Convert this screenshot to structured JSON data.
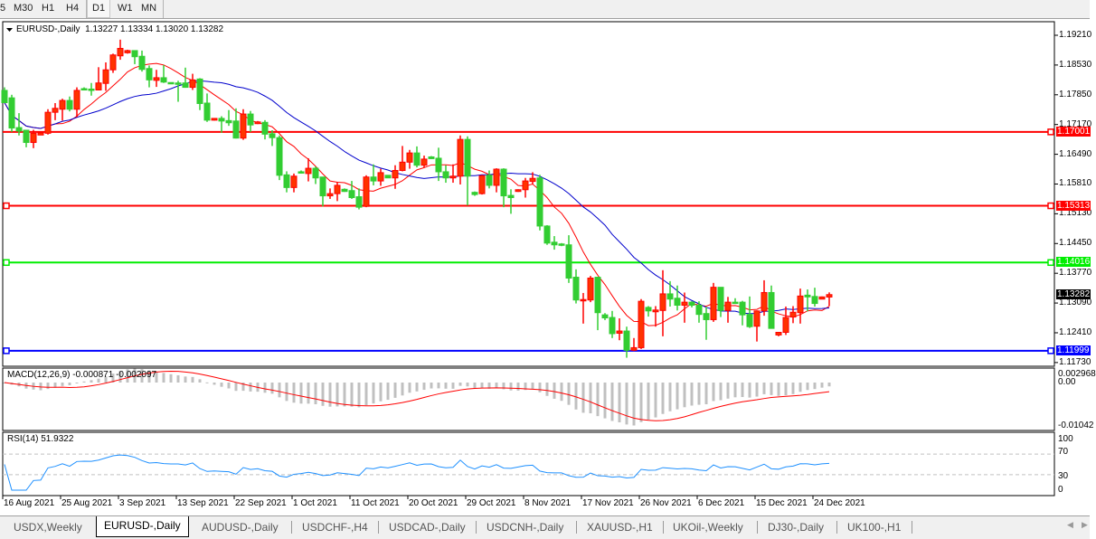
{
  "toolbar": {
    "timeframes": [
      "5",
      "M30",
      "H1",
      "H4",
      "D1",
      "W1",
      "MN"
    ],
    "active": "D1"
  },
  "chart": {
    "symbol_label": "EURUSD-,Daily",
    "ohlc_label": "1.13227 1.13334 1.13020 1.13282",
    "current_price": "1.13282",
    "colors": {
      "bull": "#ff3300",
      "bull_outline": "#ff0000",
      "bear": "#32cd32",
      "ma_fast": "#ff0000",
      "ma_slow": "#0000cc",
      "macd_hist": "#c0c0c0",
      "macd_signal": "#ff0000",
      "rsi": "#1e90ff"
    },
    "price_axis": [
      "1.19210",
      "1.18530",
      "1.17850",
      "1.17170",
      "1.16490",
      "1.15810",
      "1.15130",
      "1.14450",
      "1.13770",
      "1.13090",
      "1.12410",
      "1.11730"
    ],
    "levels": [
      {
        "price": "1.17001",
        "color": "#ff0000",
        "left_marker": false
      },
      {
        "price": "1.15313",
        "color": "#ff0000",
        "left_marker": true
      },
      {
        "price": "1.14016",
        "color": "#00ee00",
        "left_marker": true
      },
      {
        "price": "1.11999",
        "color": "#0000ff",
        "left_marker": true
      }
    ],
    "dates": [
      "16 Aug 2021",
      "25 Aug 2021",
      "3 Sep 2021",
      "13 Sep 2021",
      "22 Sep 2021",
      "1 Oct 2021",
      "11 Oct 2021",
      "20 Oct 2021",
      "29 Oct 2021",
      "8 Nov 2021",
      "17 Nov 2021",
      "26 Nov 2021",
      "6 Dec 2021",
      "15 Dec 2021",
      "24 Dec 2021"
    ],
    "candles_ohlc": [
      [
        1.1795,
        1.1802,
        1.1767,
        1.1767
      ],
      [
        1.1778,
        1.1785,
        1.17,
        1.1709
      ],
      [
        1.171,
        1.1743,
        1.1692,
        1.1702
      ],
      [
        1.1704,
        1.1704,
        1.1665,
        1.1676
      ],
      [
        1.1676,
        1.1705,
        1.1663,
        1.1697
      ],
      [
        1.1693,
        1.1698,
        1.1693,
        1.1698
      ],
      [
        1.1697,
        1.1752,
        1.1694,
        1.1745
      ],
      [
        1.1745,
        1.1766,
        1.1727,
        1.1754
      ],
      [
        1.1752,
        1.1776,
        1.1726,
        1.1772
      ],
      [
        1.1772,
        1.1781,
        1.1747,
        1.1752
      ],
      [
        1.1752,
        1.1802,
        1.1734,
        1.1795
      ],
      [
        1.1799,
        1.1802,
        1.1795,
        1.1798
      ],
      [
        1.1798,
        1.1812,
        1.1783,
        1.1797
      ],
      [
        1.1796,
        1.1848,
        1.1795,
        1.1812
      ],
      [
        1.1811,
        1.1859,
        1.1794,
        1.1842
      ],
      [
        1.1842,
        1.1879,
        1.1835,
        1.1876
      ],
      [
        1.1874,
        1.1911,
        1.1865,
        1.1891
      ],
      [
        1.1881,
        1.1888,
        1.1879,
        1.1886
      ],
      [
        1.1886,
        1.1886,
        1.1855,
        1.1872
      ],
      [
        1.1873,
        1.1886,
        1.1838,
        1.1843
      ],
      [
        1.1845,
        1.1852,
        1.1802,
        1.1819
      ],
      [
        1.1818,
        1.1842,
        1.1803,
        1.1824
      ],
      [
        1.1824,
        1.1853,
        1.1812,
        1.1814
      ],
      [
        1.1813,
        1.1813,
        1.1811,
        1.1811
      ],
      [
        1.1812,
        1.1817,
        1.1769,
        1.1811
      ],
      [
        1.1812,
        1.1847,
        1.1801,
        1.1802
      ],
      [
        1.1802,
        1.1833,
        1.1796,
        1.1819
      ],
      [
        1.1821,
        1.1823,
        1.175,
        1.1765
      ],
      [
        1.1766,
        1.1788,
        1.1723,
        1.1727
      ],
      [
        1.1727,
        1.1731,
        1.1726,
        1.1731
      ],
      [
        1.1731,
        1.1736,
        1.1698,
        1.1725
      ],
      [
        1.1726,
        1.175,
        1.1714,
        1.1721
      ],
      [
        1.1725,
        1.1754,
        1.1685,
        1.1686
      ],
      [
        1.1686,
        1.1752,
        1.1682,
        1.1741
      ],
      [
        1.1741,
        1.1748,
        1.17,
        1.1716
      ],
      [
        1.1719,
        1.1725,
        1.1718,
        1.1723
      ],
      [
        1.1722,
        1.1727,
        1.1683,
        1.1695
      ],
      [
        1.1696,
        1.1704,
        1.1668,
        1.1687
      ],
      [
        1.1687,
        1.1692,
        1.159,
        1.1601
      ],
      [
        1.1602,
        1.161,
        1.1562,
        1.1573
      ],
      [
        1.1573,
        1.1605,
        1.1562,
        1.1599
      ],
      [
        1.1609,
        1.1612,
        1.1605,
        1.1606
      ],
      [
        1.1605,
        1.164,
        1.1587,
        1.1617
      ],
      [
        1.1617,
        1.1621,
        1.1581,
        1.1595
      ],
      [
        1.1597,
        1.1597,
        1.153,
        1.1554
      ],
      [
        1.1554,
        1.1571,
        1.1547,
        1.1559
      ],
      [
        1.1559,
        1.1586,
        1.1542,
        1.1578
      ],
      [
        1.1569,
        1.1571,
        1.1563,
        1.1564
      ],
      [
        1.1566,
        1.1588,
        1.1547,
        1.155
      ],
      [
        1.1552,
        1.1571,
        1.1523,
        1.1528
      ],
      [
        1.153,
        1.1601,
        1.1528,
        1.1597
      ],
      [
        1.1597,
        1.1626,
        1.1578,
        1.1588
      ],
      [
        1.1588,
        1.1616,
        1.1577,
        1.1607
      ],
      [
        1.1601,
        1.1601,
        1.1595,
        1.1595
      ],
      [
        1.1595,
        1.1624,
        1.157,
        1.1612
      ],
      [
        1.1612,
        1.1668,
        1.161,
        1.1631
      ],
      [
        1.1631,
        1.1659,
        1.1616,
        1.1652
      ],
      [
        1.1652,
        1.1667,
        1.1619,
        1.1624
      ],
      [
        1.1624,
        1.1646,
        1.1619,
        1.1638
      ],
      [
        1.1643,
        1.1645,
        1.1638,
        1.1639
      ],
      [
        1.164,
        1.1664,
        1.1588,
        1.1609
      ],
      [
        1.1609,
        1.1624,
        1.1584,
        1.1595
      ],
      [
        1.1595,
        1.1626,
        1.1584,
        1.1599
      ],
      [
        1.1599,
        1.1692,
        1.158,
        1.1683
      ],
      [
        1.1683,
        1.169,
        1.1532,
        1.1599
      ],
      [
        1.1562,
        1.1564,
        1.1554,
        1.1557
      ],
      [
        1.1559,
        1.1602,
        1.1557,
        1.16
      ],
      [
        1.1601,
        1.1612,
        1.1571,
        1.1578
      ],
      [
        1.1578,
        1.1617,
        1.1562,
        1.1615
      ],
      [
        1.1615,
        1.1617,
        1.1528,
        1.1554
      ],
      [
        1.1555,
        1.1569,
        1.1513,
        1.155
      ],
      [
        1.1564,
        1.1569,
        1.1563,
        1.1568
      ],
      [
        1.1568,
        1.1595,
        1.155,
        1.1588
      ],
      [
        1.1587,
        1.1608,
        1.158,
        1.1594
      ],
      [
        1.1595,
        1.1602,
        1.1475,
        1.1485
      ],
      [
        1.1485,
        1.1487,
        1.1442,
        1.1446
      ],
      [
        1.1448,
        1.1462,
        1.1431,
        1.1442
      ],
      [
        1.1444,
        1.1446,
        1.1439,
        1.1441
      ],
      [
        1.1442,
        1.1464,
        1.1355,
        1.1366
      ],
      [
        1.1368,
        1.1386,
        1.1308,
        1.1316
      ],
      [
        1.1317,
        1.1332,
        1.1262,
        1.1317
      ],
      [
        1.1316,
        1.1371,
        1.1311,
        1.1366
      ],
      [
        1.1368,
        1.1369,
        1.1247,
        1.1287
      ],
      [
        1.1282,
        1.1286,
        1.127,
        1.1275
      ],
      [
        1.1276,
        1.1291,
        1.1229,
        1.1239
      ],
      [
        1.124,
        1.1274,
        1.1224,
        1.1245
      ],
      [
        1.1245,
        1.1255,
        1.1184,
        1.1201
      ],
      [
        1.1201,
        1.1229,
        1.1199,
        1.1207
      ],
      [
        1.1207,
        1.1318,
        1.1204,
        1.1313
      ],
      [
        1.1299,
        1.1302,
        1.1278,
        1.1291
      ],
      [
        1.1289,
        1.1302,
        1.1255,
        1.1293
      ],
      [
        1.1292,
        1.1384,
        1.1233,
        1.133
      ],
      [
        1.133,
        1.1359,
        1.1301,
        1.1318
      ],
      [
        1.132,
        1.1349,
        1.1292,
        1.1304
      ],
      [
        1.1304,
        1.1333,
        1.1264,
        1.1311
      ],
      [
        1.1311,
        1.1313,
        1.1299,
        1.1304
      ],
      [
        1.1304,
        1.1313,
        1.1264,
        1.1283
      ],
      [
        1.1285,
        1.13,
        1.1225,
        1.1271
      ],
      [
        1.1271,
        1.1355,
        1.1266,
        1.1345
      ],
      [
        1.1345,
        1.1345,
        1.1277,
        1.1292
      ],
      [
        1.1292,
        1.1323,
        1.1264,
        1.1311
      ],
      [
        1.1311,
        1.132,
        1.1307,
        1.1309
      ],
      [
        1.1311,
        1.1314,
        1.1258,
        1.1282
      ],
      [
        1.1283,
        1.1324,
        1.1252,
        1.1255
      ],
      [
        1.1256,
        1.1292,
        1.1221,
        1.1291
      ],
      [
        1.1291,
        1.1361,
        1.128,
        1.1333
      ],
      [
        1.1333,
        1.1349,
        1.1251,
        1.1251
      ],
      [
        1.1236,
        1.1243,
        1.1233,
        1.1242
      ],
      [
        1.1242,
        1.1301,
        1.1236,
        1.1276
      ],
      [
        1.1277,
        1.1302,
        1.1263,
        1.1288
      ],
      [
        1.1287,
        1.1342,
        1.1262,
        1.1325
      ],
      [
        1.1327,
        1.134,
        1.129,
        1.1323
      ],
      [
        1.1324,
        1.1344,
        1.1301,
        1.1308
      ],
      [
        1.1318,
        1.1324,
        1.1318,
        1.1323
      ],
      [
        1.13227,
        1.13334,
        1.1302,
        1.13282
      ]
    ]
  },
  "macd": {
    "label": "MACD(12,26,9) -0.000871 -0.002097",
    "axis_top": "0.002968",
    "axis_zero": "0.00",
    "axis_bottom": "-0.01042"
  },
  "rsi": {
    "label": "RSI(14) 51.9322",
    "axis": [
      "100",
      "70",
      "30",
      "0"
    ]
  },
  "tabs": {
    "items": [
      "USDX,Weekly",
      "EURUSD-,Daily",
      "AUDUSD-,Daily",
      "USDCHF-,H4",
      "USDCAD-,Daily",
      "USDCNH-,Daily",
      "XAUUSD-,H1",
      "UKOil-,Weekly",
      "DJ30-,Daily",
      "UK100-,H1"
    ],
    "active": "EURUSD-,Daily"
  }
}
